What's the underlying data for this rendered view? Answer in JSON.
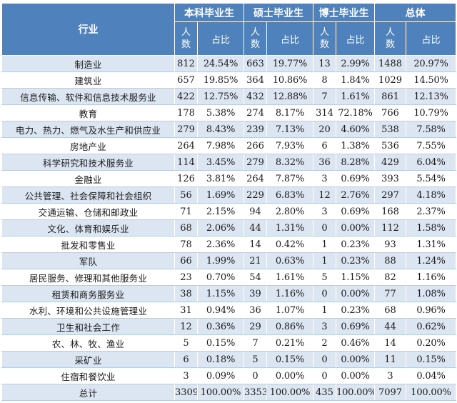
{
  "header": {
    "industry": "行业",
    "groups": [
      "本科毕业生",
      "硕士毕业生",
      "博士毕业生",
      "总体"
    ],
    "count_chars": [
      "人",
      "数"
    ],
    "share": "占比"
  },
  "rows": [
    {
      "industry": "制造业",
      "values": [
        "812",
        "24.54%",
        "663",
        "19.77%",
        "13",
        "2.99%",
        "1488",
        "20.97%"
      ]
    },
    {
      "industry": "建筑业",
      "values": [
        "657",
        "19.85%",
        "364",
        "10.86%",
        "8",
        "1.84%",
        "1029",
        "14.50%"
      ]
    },
    {
      "industry": "信息传输、软件和信息技术服务业",
      "values": [
        "422",
        "12.75%",
        "432",
        "12.88%",
        "7",
        "1.61%",
        "861",
        "12.13%"
      ]
    },
    {
      "industry": "教育",
      "values": [
        "178",
        "5.38%",
        "274",
        "8.17%",
        "314",
        "72.18%",
        "766",
        "10.79%"
      ]
    },
    {
      "industry": "电力、热力、燃气及水生产和供应业",
      "values": [
        "279",
        "8.43%",
        "239",
        "7.13%",
        "20",
        "4.60%",
        "538",
        "7.58%"
      ]
    },
    {
      "industry": "房地产业",
      "values": [
        "264",
        "7.98%",
        "266",
        "7.93%",
        "6",
        "1.38%",
        "536",
        "7.55%"
      ]
    },
    {
      "industry": "科学研究和技术服务业",
      "values": [
        "114",
        "3.45%",
        "279",
        "8.32%",
        "36",
        "8.28%",
        "429",
        "6.04%"
      ]
    },
    {
      "industry": "金融业",
      "values": [
        "126",
        "3.81%",
        "264",
        "7.87%",
        "3",
        "0.69%",
        "393",
        "5.54%"
      ]
    },
    {
      "industry": "公共管理、社会保障和社会组织",
      "values": [
        "56",
        "1.69%",
        "229",
        "6.83%",
        "12",
        "2.76%",
        "297",
        "4.18%"
      ]
    },
    {
      "industry": "交通运输、仓储和邮政业",
      "values": [
        "71",
        "2.15%",
        "94",
        "2.80%",
        "3",
        "0.69%",
        "168",
        "2.37%"
      ]
    },
    {
      "industry": "文化、体育和娱乐业",
      "values": [
        "68",
        "2.06%",
        "44",
        "1.31%",
        "0",
        "0.00%",
        "112",
        "1.58%"
      ]
    },
    {
      "industry": "批发和零售业",
      "values": [
        "78",
        "2.36%",
        "14",
        "0.42%",
        "1",
        "0.23%",
        "93",
        "1.31%"
      ]
    },
    {
      "industry": "军队",
      "values": [
        "66",
        "1.99%",
        "21",
        "0.63%",
        "1",
        "0.23%",
        "88",
        "1.24%"
      ]
    },
    {
      "industry": "居民服务、修理和其他服务业",
      "values": [
        "23",
        "0.70%",
        "54",
        "1.61%",
        "5",
        "1.15%",
        "82",
        "1.16%"
      ]
    },
    {
      "industry": "租赁和商务服务业",
      "values": [
        "38",
        "1.15%",
        "39",
        "1.16%",
        "0",
        "0.00%",
        "77",
        "1.08%"
      ]
    },
    {
      "industry": "水利、环境和公共设施管理业",
      "values": [
        "31",
        "0.94%",
        "36",
        "1.07%",
        "1",
        "0.23%",
        "68",
        "0.96%"
      ]
    },
    {
      "industry": "卫生和社会工作",
      "values": [
        "12",
        "0.36%",
        "29",
        "0.86%",
        "3",
        "0.69%",
        "44",
        "0.62%"
      ]
    },
    {
      "industry": "农、林、牧、渔业",
      "values": [
        "5",
        "0.15%",
        "7",
        "0.21%",
        "2",
        "0.46%",
        "14",
        "0.20%"
      ]
    },
    {
      "industry": "采矿业",
      "values": [
        "6",
        "0.18%",
        "5",
        "0.15%",
        "0",
        "0.00%",
        "11",
        "0.15%"
      ]
    },
    {
      "industry": "住宿和餐饮业",
      "values": [
        "3",
        "0.09%",
        "0",
        "0.00%",
        "0",
        "0.00%",
        "3",
        "0.04%"
      ]
    }
  ],
  "total": {
    "label": "总计",
    "values": [
      "3309",
      "100.00%",
      "3353",
      "100.00%",
      "435",
      "100.00%",
      "7097",
      "100.00%"
    ]
  }
}
